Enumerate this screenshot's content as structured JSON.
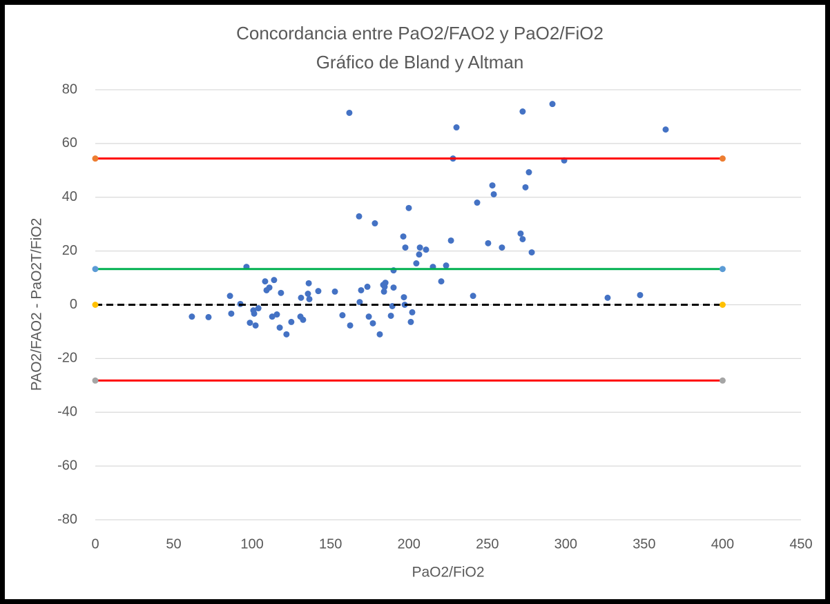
{
  "chart_data": {
    "type": "scatter",
    "title": "Concordancia entre PaO2/FAO2 y PaO2/FiO2",
    "subtitle": "Gráfico de Bland y Altman",
    "x_label": "PaO2/FiO2",
    "y_label": "PAO2/FAO2 - PaO2T/FiO2",
    "xlim": [
      0,
      450
    ],
    "xticks": [
      0,
      50,
      100,
      150,
      200,
      250,
      300,
      350,
      400,
      450
    ],
    "ylim": [
      -80,
      80
    ],
    "yticks": [
      -80,
      -60,
      -40,
      -20,
      0,
      20,
      40,
      60,
      80
    ],
    "grid": true,
    "series": [
      {
        "mode": "markers",
        "color": "#4472c4",
        "x": [
          61.6,
          72.2,
          85.9,
          86.7,
          92.5,
          96.4,
          98.6,
          100.8,
          101.3,
          102.2,
          104.0,
          108.3,
          109.2,
          111.0,
          112.8,
          114.0,
          115.8,
          117.6,
          118.4,
          121.9,
          125.0,
          131.2,
          130.8,
          132.5,
          135.6,
          136.1,
          136.5,
          142.2,
          152.8,
          157.6,
          162.0,
          162.5,
          168.2,
          168.6,
          169.5,
          173.5,
          174.4,
          177.0,
          178.3,
          181.4,
          183.6,
          184.1,
          184.5,
          185.0,
          188.5,
          189.4,
          190.2,
          190.2,
          196.4,
          196.8,
          197.3,
          197.7,
          199.9,
          201.2,
          202.1,
          204.7,
          206.5,
          207.0,
          210.9,
          215.3,
          220.6,
          223.7,
          226.8,
          228.1,
          230.3,
          240.9,
          243.5,
          250.5,
          253.2,
          254.1,
          259.3,
          271.2,
          272.5,
          272.5,
          274.3,
          276.5,
          278.3,
          291.5,
          299.0,
          326.7,
          347.4,
          363.7
        ],
        "values": [
          -4.4,
          -4.6,
          3.3,
          -3.3,
          0.3,
          14.1,
          -6.7,
          -2.1,
          -3.3,
          -7.7,
          -1.3,
          8.7,
          5.4,
          6.4,
          -4.4,
          9.2,
          -3.6,
          -8.5,
          4.4,
          -11.0,
          -6.4,
          2.6,
          -4.4,
          -5.6,
          4.1,
          8.0,
          2.1,
          5.1,
          4.9,
          -3.9,
          71.4,
          -7.7,
          32.9,
          1.0,
          5.4,
          6.7,
          -4.4,
          -6.9,
          30.3,
          -11.0,
          7.4,
          4.9,
          6.7,
          8.2,
          -4.1,
          -0.5,
          12.8,
          6.4,
          25.4,
          2.8,
          0.0,
          21.3,
          36.0,
          -6.4,
          -2.8,
          15.4,
          18.7,
          21.3,
          20.5,
          14.1,
          8.7,
          14.6,
          23.9,
          54.4,
          66.0,
          3.3,
          38.0,
          22.9,
          44.4,
          41.1,
          21.3,
          26.5,
          71.9,
          24.4,
          43.7,
          49.3,
          19.5,
          74.7,
          53.7,
          2.6,
          3.6,
          65.2
        ]
      },
      {
        "mode": "lines+markers",
        "color": "#ff0000",
        "marker_color": "#ed7d31",
        "dash": false,
        "x": [
          0,
          400
        ],
        "values": [
          54.4,
          54.4
        ]
      },
      {
        "mode": "lines+markers",
        "color": "#00b050",
        "marker_color": "#5b9bd5",
        "dash": false,
        "x": [
          0,
          400
        ],
        "values": [
          13.3,
          13.3
        ]
      },
      {
        "mode": "lines+markers",
        "color": "#000000",
        "marker_color": "#ffc000",
        "dash": true,
        "x": [
          0,
          400
        ],
        "values": [
          0,
          0
        ]
      },
      {
        "mode": "lines+markers",
        "color": "#ff0000",
        "marker_color": "#a5a5a5",
        "dash": false,
        "x": [
          0,
          400
        ],
        "values": [
          -28.2,
          -28.2
        ]
      }
    ]
  }
}
